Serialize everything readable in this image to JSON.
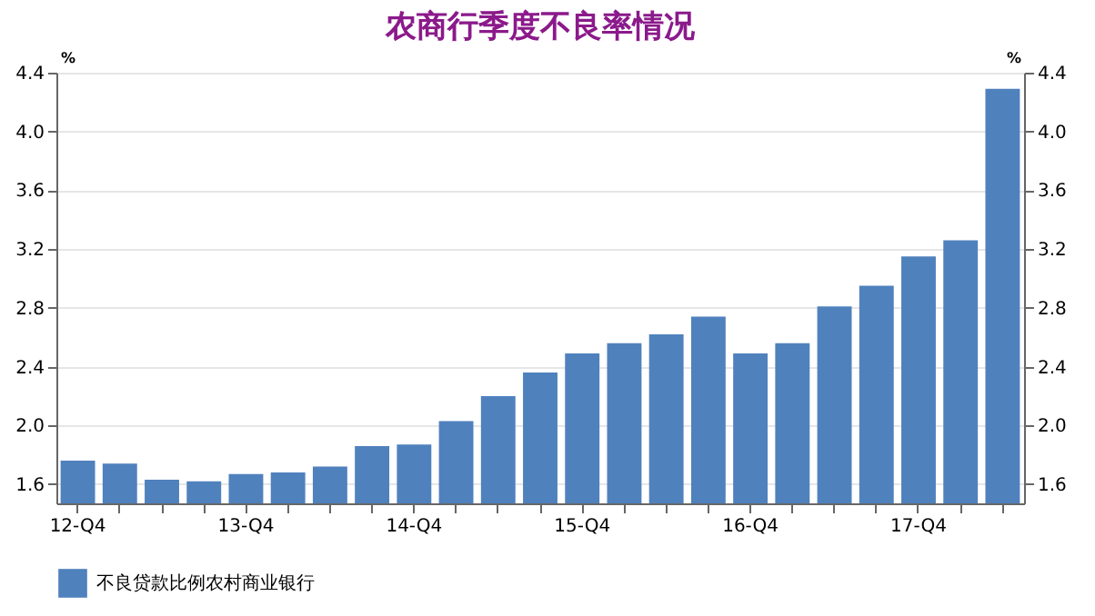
{
  "chart_data": {
    "type": "bar",
    "title": "农商行季度不良率情况",
    "categories": [
      "12-Q4",
      null,
      null,
      null,
      "13-Q4",
      null,
      null,
      null,
      "14-Q4",
      null,
      null,
      null,
      "15-Q4",
      null,
      null,
      null,
      "16-Q4",
      null,
      null,
      null,
      "17-Q4",
      null,
      null
    ],
    "series": [
      {
        "name": "不良贷款比例农村商业银行",
        "color": "#4f81bd",
        "values": [
          1.76,
          1.74,
          1.63,
          1.62,
          1.67,
          1.68,
          1.72,
          1.86,
          1.87,
          2.03,
          2.2,
          2.36,
          2.49,
          2.56,
          2.62,
          2.74,
          2.49,
          2.56,
          2.81,
          2.95,
          3.15,
          3.26,
          4.29
        ]
      }
    ],
    "ylabel": "%",
    "y2label": "%",
    "ylim": [
      1.47,
      4.4
    ],
    "yticks": [
      1.6,
      {
        "value": 2,
        "label": "2.0"
      },
      2.4,
      2.8,
      3.2,
      3.6,
      {
        "value": 4,
        "label": "4.0"
      },
      4.4
    ],
    "y2lim": [
      1.47,
      4.4
    ],
    "y2ticks": [
      1.6,
      {
        "value": 2,
        "label": "2.0"
      },
      2.4,
      2.8,
      3.2,
      3.6,
      {
        "value": 4,
        "label": "4.0"
      },
      4.4
    ],
    "grid": "y",
    "legend": "bottom"
  }
}
